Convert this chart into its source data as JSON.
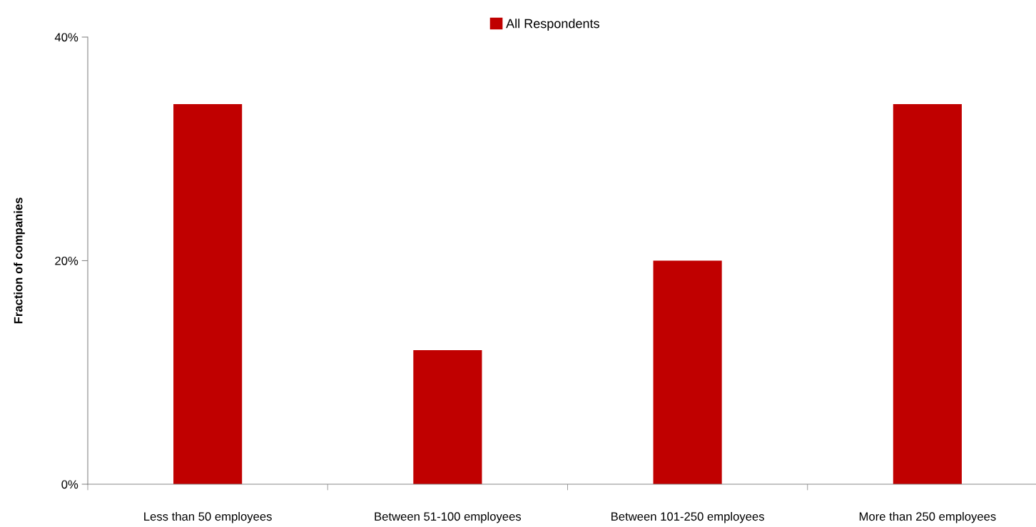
{
  "chart_data": {
    "type": "bar",
    "ylabel": "Fraction of companies",
    "categories": [
      "Less than 50 employees",
      "Between 51-100 employees",
      "Between 101-250 employees",
      "More than 250 employees"
    ],
    "series": [
      {
        "name": "All Respondents",
        "color": "#c00000",
        "values": [
          34,
          12,
          20,
          34
        ]
      }
    ],
    "ylim": [
      0,
      40
    ],
    "yticks": [
      {
        "value": 0,
        "label": "0%"
      },
      {
        "value": 20,
        "label": "20%"
      },
      {
        "value": 40,
        "label": "40%"
      }
    ],
    "grid": false,
    "legend": "top"
  }
}
